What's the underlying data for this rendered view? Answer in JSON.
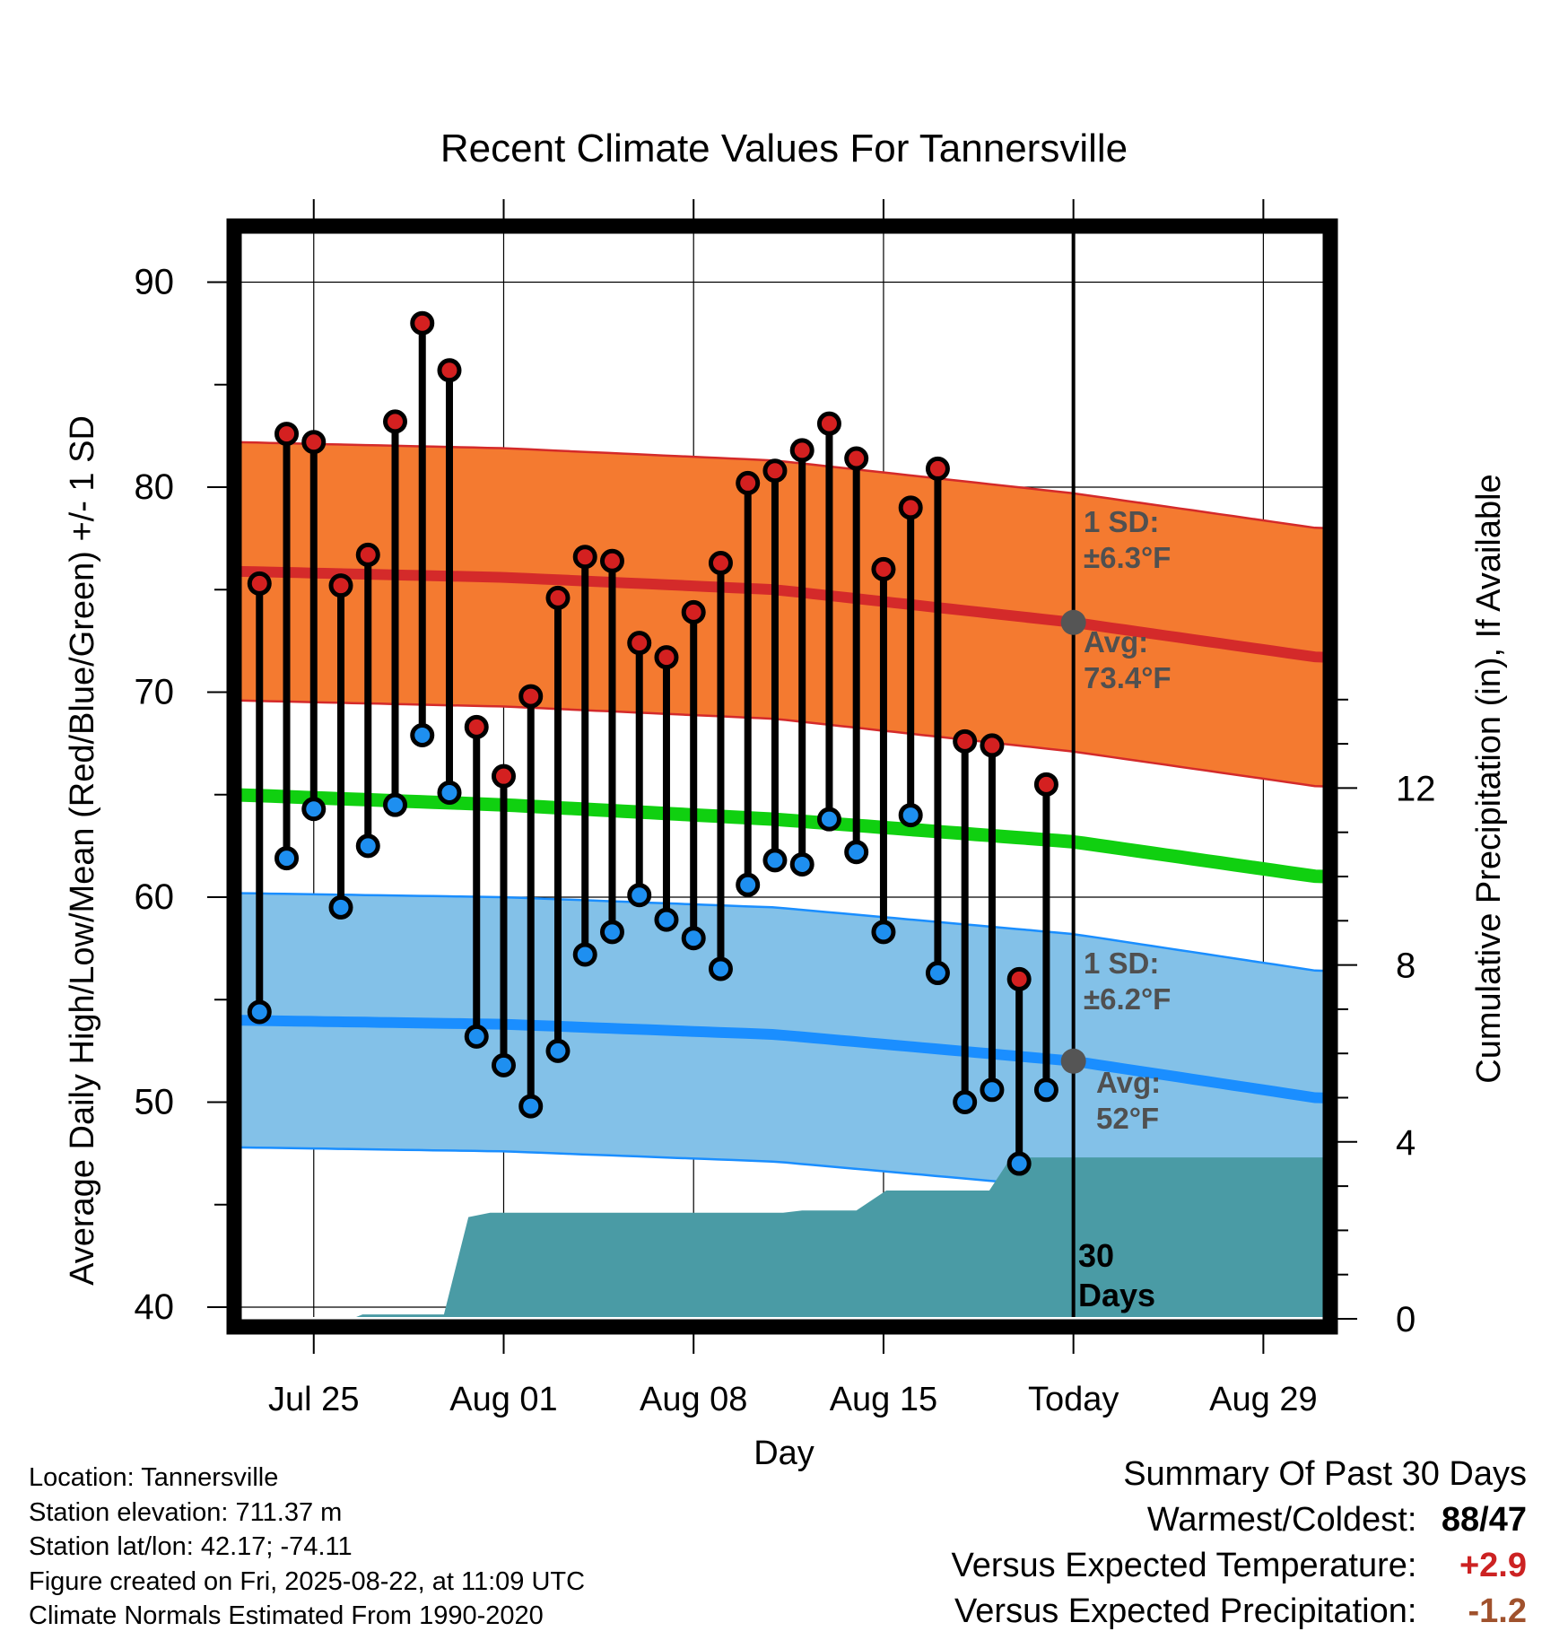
{
  "chart_data": {
    "type": "line",
    "title": "Recent Climate Values For Tannersville",
    "xlabel": "Day",
    "ylabel_left": "Average Daily High/Low/Mean (Red/Blue/Green) +/- 1 SD",
    "ylabel_right": "Cumulative Precipitation (in), If Available",
    "x_ticks": [
      "Jul 25",
      "Aug 01",
      "Aug 08",
      "Aug 15",
      "Today",
      "Aug 29"
    ],
    "x_tick_days": [
      3,
      10,
      17,
      24,
      31,
      38
    ],
    "y_left_ticks": [
      40,
      50,
      60,
      70,
      80,
      90
    ],
    "y_left_range": [
      39.4,
      93
    ],
    "y_right_ticks": [
      0,
      4,
      8,
      12
    ],
    "x_range": [
      -0.1,
      40.5
    ],
    "today_day": 31,
    "today_marker_label": "30\nDays",
    "daily_high": [
      75.3,
      82.6,
      82.2,
      75.2,
      76.7,
      83.2,
      88.0,
      85.7,
      68.3,
      65.9,
      69.8,
      74.6,
      76.6,
      76.4,
      72.4,
      71.7,
      73.9,
      76.3,
      80.2,
      80.8,
      81.8,
      83.1,
      81.4,
      76.0,
      79.0,
      80.9,
      67.6,
      67.4,
      56.0,
      65.5
    ],
    "daily_low": [
      54.4,
      61.9,
      64.3,
      59.5,
      62.5,
      64.5,
      67.9,
      65.1,
      53.2,
      51.8,
      49.8,
      52.5,
      57.2,
      58.3,
      60.1,
      58.9,
      58.0,
      56.5,
      60.6,
      61.8,
      61.6,
      63.8,
      62.2,
      58.3,
      64.0,
      56.3,
      50.0,
      50.6,
      47.0,
      50.6
    ],
    "normal_days": [
      0,
      10,
      20,
      31,
      40
    ],
    "normal_high": [
      75.9,
      75.6,
      75.0,
      73.4,
      71.7
    ],
    "normal_high_sd": 6.3,
    "normal_mean": [
      65.0,
      64.5,
      63.8,
      62.7,
      61.0
    ],
    "normal_low": [
      54.0,
      53.8,
      53.3,
      52.0,
      50.2
    ],
    "normal_low_sd": 6.2,
    "precip_cumulative": [
      [
        0,
        0
      ],
      [
        4.4,
        0
      ],
      [
        4.8,
        0.1
      ],
      [
        7.8,
        0.1
      ],
      [
        8.7,
        2.3
      ],
      [
        9.5,
        2.4
      ],
      [
        20.3,
        2.4
      ],
      [
        21.0,
        2.45
      ],
      [
        23.0,
        2.45
      ],
      [
        24.1,
        2.9
      ],
      [
        27.9,
        2.9
      ],
      [
        28.7,
        3.65
      ],
      [
        40.5,
        3.65
      ]
    ],
    "annotations": {
      "high_sd": "1 SD:\n±6.3°F",
      "high_avg": "Avg:\n73.4°F",
      "low_sd": "1 SD:\n±6.2°F",
      "low_avg": "Avg:\n52°F"
    },
    "colors": {
      "high_band": "#f47a30",
      "high_line": "#d42a2a",
      "high_edge": "#d42a2a",
      "mean_line": "#10d010",
      "low_band": "#83c1e8",
      "low_line": "#1a8eff",
      "low_edge": "#1a8eff",
      "precip": "#4a9ba5",
      "high_dot": "#d42020",
      "low_dot": "#1e8ff0",
      "annotation_text": "#505050"
    },
    "grid": true,
    "legend": "none"
  },
  "footer": {
    "location": "Location: Tannersville",
    "elevation": "Station elevation: 711.37 m",
    "latlon": "Station lat/lon: 42.17; -74.11",
    "created": "Figure created on Fri, 2025-08-22, at 11:09 UTC",
    "normals": "Climate Normals Estimated From 1990-2020"
  },
  "summary": {
    "heading": "Summary Of Past 30 Days",
    "warm_label": "Warmest/Coldest:",
    "warm_value": "88/47",
    "temp_label": "Versus Expected Temperature:",
    "temp_value": "+2.9",
    "precip_label": "Versus Expected Precipitation:",
    "precip_value": "-1.2"
  }
}
